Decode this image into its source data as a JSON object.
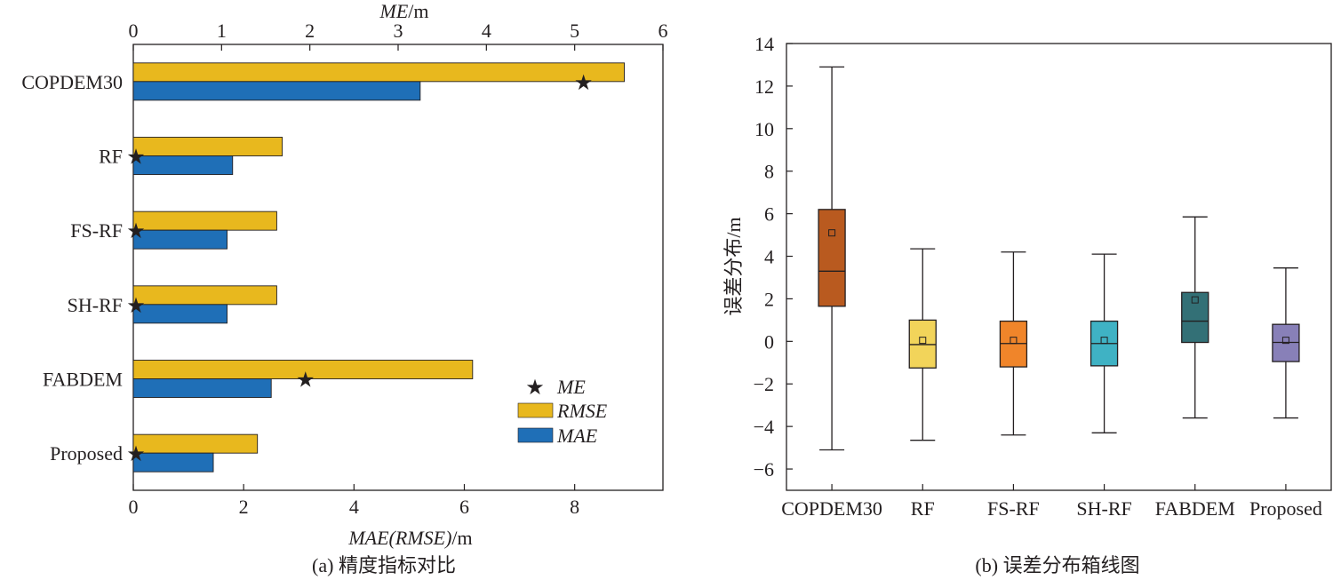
{
  "chart_data": [
    {
      "type": "bar",
      "orientation": "horizontal",
      "categories": [
        "COPDEM30",
        "RF",
        "FS-RF",
        "SH-RF",
        "FABDEM",
        "Proposed"
      ],
      "series": [
        {
          "name": "RMSE",
          "values": [
            8.9,
            2.7,
            2.6,
            2.6,
            6.15,
            2.25
          ],
          "color": "#e8b81e",
          "marker": "bar"
        },
        {
          "name": "MAE",
          "values": [
            5.2,
            1.8,
            1.7,
            1.7,
            2.5,
            1.45
          ],
          "color": "#1f6fb7",
          "marker": "bar"
        },
        {
          "name": "ME",
          "values": [
            5.1,
            0.03,
            0.03,
            0.03,
            1.95,
            0.03
          ],
          "color": "#231f20",
          "marker": "star",
          "axis": "top"
        }
      ],
      "xlabel_bottom": {
        "main": "MAE(RMSE)",
        "unit": "/m"
      },
      "xlabel_top": {
        "main": "ME",
        "unit": "/m"
      },
      "xlim_bottom": [
        0,
        9.6
      ],
      "xlim_top": [
        0,
        6
      ],
      "xticks_bottom": [
        "0",
        "2",
        "4",
        "6",
        "8"
      ],
      "xticks_top": [
        "0",
        "1",
        "2",
        "3",
        "4",
        "5",
        "6"
      ],
      "legend": {
        "position": "bottom-right",
        "entries": [
          "ME",
          "RMSE",
          "MAE"
        ]
      },
      "caption": "(a) 精度指标对比",
      "grid": false
    },
    {
      "type": "box",
      "categories": [
        "COPDEM30",
        "RF",
        "FS-RF",
        "SH-RF",
        "FABDEM",
        "Proposed"
      ],
      "boxes": [
        {
          "whisker_low": -5.1,
          "q1": 1.65,
          "median": 3.3,
          "q3": 6.2,
          "whisker_high": 12.9,
          "mean": 5.1,
          "color": "#b95a1f"
        },
        {
          "whisker_low": -4.65,
          "q1": -1.25,
          "median": -0.15,
          "q3": 1.0,
          "whisker_high": 4.35,
          "mean": 0.05,
          "color": "#f2d45a"
        },
        {
          "whisker_low": -4.4,
          "q1": -1.2,
          "median": -0.1,
          "q3": 0.95,
          "whisker_high": 4.2,
          "mean": 0.05,
          "color": "#f0852a"
        },
        {
          "whisker_low": -4.3,
          "q1": -1.15,
          "median": -0.1,
          "q3": 0.95,
          "whisker_high": 4.1,
          "mean": 0.05,
          "color": "#3fb2c4"
        },
        {
          "whisker_low": -3.6,
          "q1": -0.05,
          "median": 0.95,
          "q3": 2.3,
          "whisker_high": 5.85,
          "mean": 1.95,
          "color": "#337076"
        },
        {
          "whisker_low": -3.6,
          "q1": -0.95,
          "median": -0.05,
          "q3": 0.8,
          "whisker_high": 3.45,
          "mean": 0.05,
          "color": "#8880b8"
        }
      ],
      "ylabel": "误差分布/m",
      "ylim": [
        -7,
        14
      ],
      "yticks": [
        "−6",
        "−4",
        "−2",
        "0",
        "2",
        "4",
        "6",
        "8",
        "10",
        "12",
        "14"
      ],
      "caption": "(b) 误差分布箱线图",
      "grid": false
    }
  ]
}
